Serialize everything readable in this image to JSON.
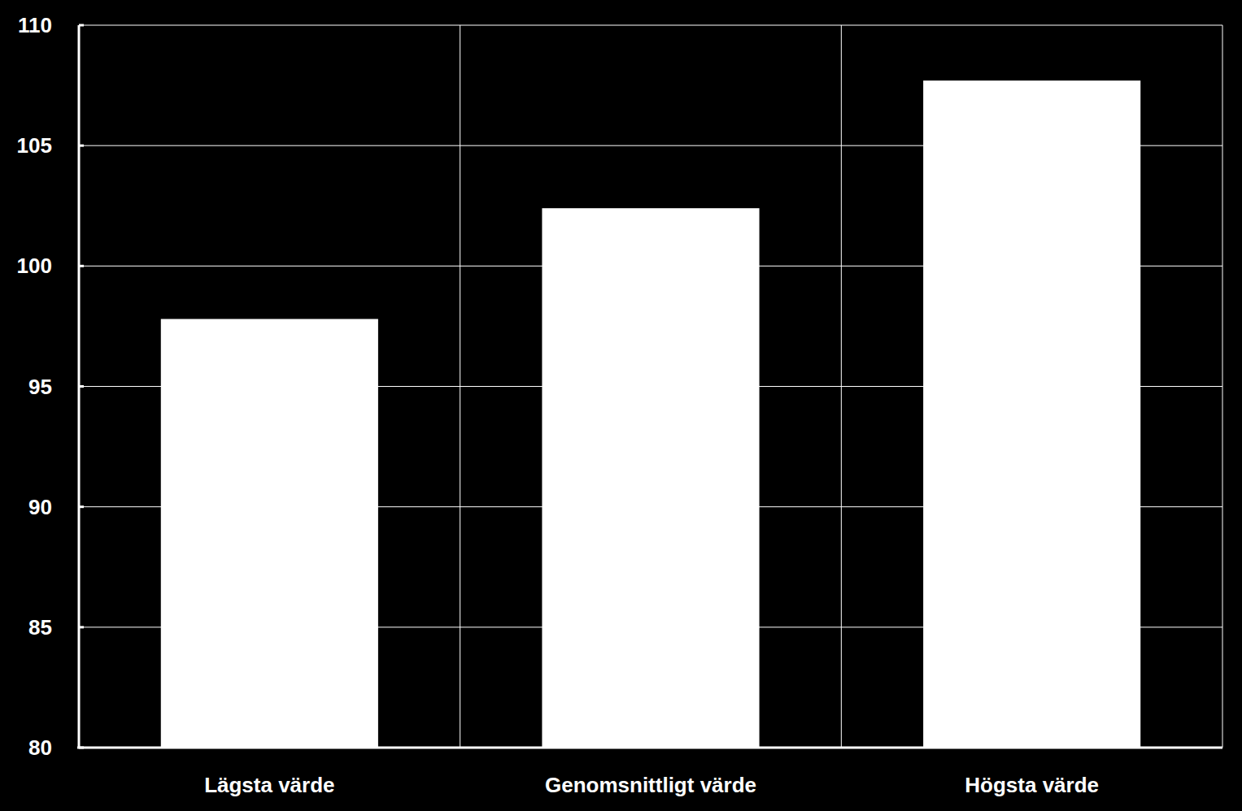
{
  "chart_data": {
    "type": "bar",
    "categories": [
      "Lägsta värde",
      "Genomsnittligt värde",
      "Högsta värde"
    ],
    "values": [
      97.8,
      102.4,
      107.7
    ],
    "color": "#ffffff",
    "ylim": [
      80,
      110
    ],
    "yticks": [
      80,
      85,
      90,
      95,
      100,
      105,
      110
    ],
    "grid": true
  }
}
